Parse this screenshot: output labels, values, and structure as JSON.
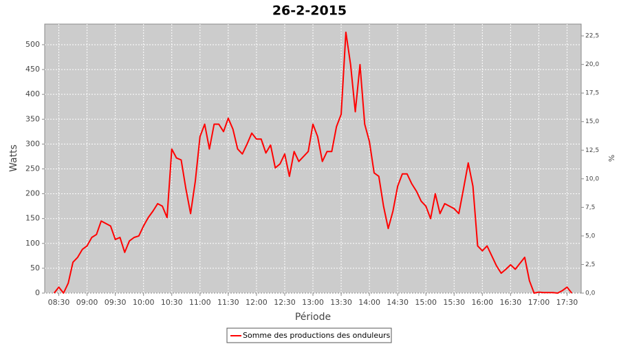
{
  "chart_data": {
    "type": "line",
    "title": "26-2-2015",
    "x_label": "Période",
    "y_label": "Watts",
    "y2_label": "%",
    "x": [
      "08:25",
      "08:30",
      "08:35",
      "08:40",
      "08:45",
      "08:50",
      "08:55",
      "09:00",
      "09:05",
      "09:10",
      "09:15",
      "09:20",
      "09:25",
      "09:30",
      "09:35",
      "09:40",
      "09:45",
      "09:50",
      "09:55",
      "10:00",
      "10:05",
      "10:10",
      "10:15",
      "10:20",
      "10:25",
      "10:30",
      "10:35",
      "10:40",
      "10:45",
      "10:50",
      "10:55",
      "11:00",
      "11:05",
      "11:10",
      "11:15",
      "11:20",
      "11:25",
      "11:30",
      "11:35",
      "11:40",
      "11:45",
      "11:50",
      "11:55",
      "12:00",
      "12:05",
      "12:10",
      "12:15",
      "12:20",
      "12:25",
      "12:30",
      "12:35",
      "12:40",
      "12:45",
      "12:50",
      "12:55",
      "13:00",
      "13:05",
      "13:10",
      "13:15",
      "13:20",
      "13:25",
      "13:30",
      "13:35",
      "13:40",
      "13:45",
      "13:50",
      "13:55",
      "14:00",
      "14:05",
      "14:10",
      "14:15",
      "14:20",
      "14:25",
      "14:30",
      "14:35",
      "14:40",
      "14:45",
      "14:50",
      "14:55",
      "15:00",
      "15:05",
      "15:10",
      "15:15",
      "15:20",
      "15:25",
      "15:30",
      "15:35",
      "15:40",
      "15:45",
      "15:50",
      "15:55",
      "16:00",
      "16:05",
      "16:10",
      "16:15",
      "16:20",
      "16:25",
      "16:30",
      "16:35",
      "16:40",
      "16:45",
      "16:50",
      "16:55",
      "17:00",
      "17:05",
      "17:10",
      "17:15",
      "17:20",
      "17:25",
      "17:30",
      "17:35"
    ],
    "series": [
      {
        "name": "Somme des productions des onduleurs",
        "color": "#ff0000",
        "values": [
          0,
          12,
          0,
          20,
          62,
          72,
          88,
          95,
          112,
          118,
          145,
          140,
          135,
          108,
          112,
          82,
          105,
          112,
          115,
          135,
          152,
          165,
          180,
          175,
          152,
          290,
          272,
          268,
          210,
          160,
          225,
          315,
          340,
          290,
          340,
          340,
          325,
          352,
          330,
          290,
          280,
          300,
          322,
          310,
          310,
          282,
          298,
          252,
          260,
          280,
          235,
          285,
          265,
          275,
          285,
          340,
          315,
          265,
          285,
          285,
          335,
          360,
          525,
          460,
          365,
          460,
          340,
          305,
          242,
          235,
          175,
          130,
          165,
          215,
          240,
          240,
          220,
          205,
          185,
          175,
          150,
          200,
          160,
          180,
          175,
          170,
          160,
          210,
          262,
          215,
          95,
          85,
          95,
          75,
          55,
          40,
          48,
          57,
          48,
          60,
          72,
          25,
          0,
          2,
          1,
          1,
          1,
          0,
          5,
          12,
          0
        ]
      }
    ],
    "xlim": [
      "08:15",
      "17:45"
    ],
    "xticks": [
      "08:30",
      "09:00",
      "09:30",
      "10:00",
      "10:30",
      "11:00",
      "11:30",
      "12:00",
      "12:30",
      "13:00",
      "13:30",
      "14:00",
      "14:30",
      "15:00",
      "15:30",
      "16:00",
      "16:30",
      "17:00",
      "17:30"
    ],
    "ylim": [
      0,
      541.5
    ],
    "yticks": [
      0,
      50,
      100,
      150,
      200,
      250,
      300,
      350,
      400,
      450,
      500
    ],
    "y2lim": [
      0,
      23.53
    ],
    "y2ticks": [
      {
        "value": 0,
        "label": "0,0"
      },
      {
        "value": 2.5,
        "label": "2,5"
      },
      {
        "value": 5,
        "label": "5,0"
      },
      {
        "value": 7.5,
        "label": "7,5"
      },
      {
        "value": 10,
        "label": "10,0"
      },
      {
        "value": 12.5,
        "label": "12,5"
      },
      {
        "value": 15,
        "label": "15,0"
      },
      {
        "value": 17.5,
        "label": "17,5"
      },
      {
        "value": 20,
        "label": "20,0"
      },
      {
        "value": 22.5,
        "label": "22,5"
      }
    ],
    "grid": true
  }
}
